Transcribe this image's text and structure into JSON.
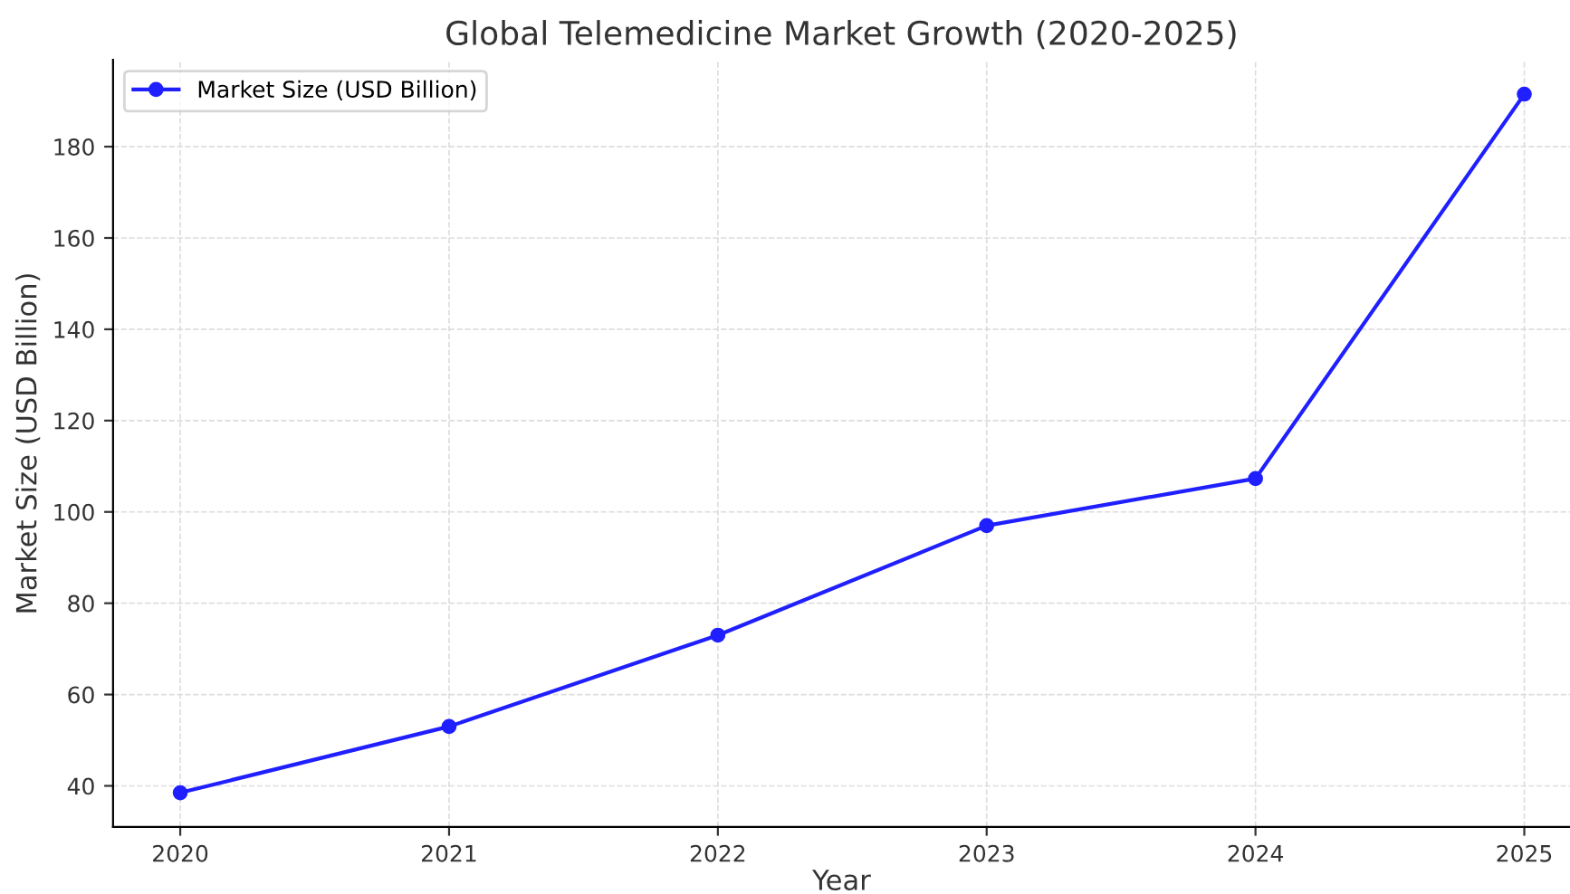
{
  "chart_data": {
    "type": "line",
    "title": "Global Telemedicine Market Growth (2020-2025)",
    "xlabel": "Year",
    "ylabel": "Market Size (USD Billion)",
    "x": [
      2020,
      2021,
      2022,
      2023,
      2024,
      2025
    ],
    "series": [
      {
        "name": "Market Size (USD Billion)",
        "color": "#1f1fff",
        "values": [
          38.5,
          53.0,
          73.0,
          97.0,
          107.3,
          191.5
        ]
      }
    ],
    "xlim": [
      2019.75,
      2025.17
    ],
    "xticks": [
      2020,
      2021,
      2022,
      2023,
      2024,
      2025
    ],
    "ylim": [
      31,
      199
    ],
    "yticks": [
      40,
      60,
      80,
      100,
      120,
      140,
      160,
      180
    ],
    "grid": true,
    "legend": "top left",
    "marker": "circle",
    "line_style": "solid"
  }
}
